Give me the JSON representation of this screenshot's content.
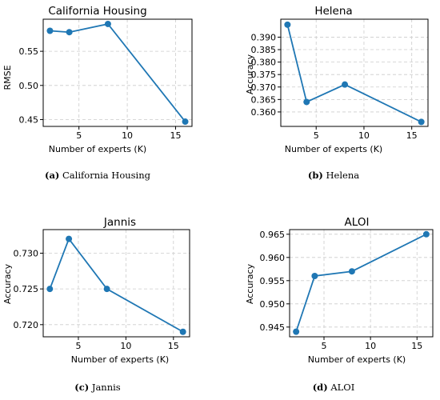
{
  "colors": {
    "line": "#1f77b4",
    "grid": "#cccccc",
    "axis": "#000000"
  },
  "chart_data": [
    {
      "type": "line",
      "title": "California Housing",
      "xlabel": "Number of experts (K)",
      "ylabel": "RMSE",
      "caption_tag": "(a)",
      "caption_text": "California Housing",
      "x": [
        2,
        4,
        8,
        16
      ],
      "y": [
        0.58,
        0.578,
        0.59,
        0.447
      ],
      "xlim": [
        1.3,
        16.7
      ],
      "ylim": [
        0.44,
        0.597
      ],
      "xticks": [
        {
          "v": 5,
          "label": "5"
        },
        {
          "v": 10,
          "label": "10"
        },
        {
          "v": 15,
          "label": "15"
        }
      ],
      "yticks": [
        {
          "v": 0.45,
          "label": "0.45"
        },
        {
          "v": 0.5,
          "label": "0.50"
        },
        {
          "v": 0.55,
          "label": "0.55"
        }
      ],
      "grid": true
    },
    {
      "type": "line",
      "title": "Helena",
      "xlabel": "Number of experts (K)",
      "ylabel": "Accuracy",
      "caption_tag": "(b)",
      "caption_text": "Helena",
      "x": [
        2,
        4,
        8,
        16
      ],
      "y": [
        0.395,
        0.364,
        0.371,
        0.356
      ],
      "xlim": [
        1.3,
        16.7
      ],
      "ylim": [
        0.3542,
        0.3972
      ],
      "xticks": [
        {
          "v": 5,
          "label": "5"
        },
        {
          "v": 10,
          "label": "10"
        },
        {
          "v": 15,
          "label": "15"
        }
      ],
      "yticks": [
        {
          "v": 0.36,
          "label": "0.360"
        },
        {
          "v": 0.365,
          "label": "0.365"
        },
        {
          "v": 0.37,
          "label": "0.370"
        },
        {
          "v": 0.375,
          "label": "0.375"
        },
        {
          "v": 0.38,
          "label": "0.380"
        },
        {
          "v": 0.385,
          "label": "0.385"
        },
        {
          "v": 0.39,
          "label": "0.390"
        }
      ],
      "grid": true
    },
    {
      "type": "line",
      "title": "Jannis",
      "xlabel": "Number of experts (K)",
      "ylabel": "Accuracy",
      "caption_tag": "(c)",
      "caption_text": "Jannis",
      "x": [
        2,
        4,
        8,
        16
      ],
      "y": [
        0.725,
        0.732,
        0.725,
        0.719
      ],
      "xlim": [
        1.3,
        16.7
      ],
      "ylim": [
        0.7183,
        0.7333
      ],
      "xticks": [
        {
          "v": 5,
          "label": "5"
        },
        {
          "v": 10,
          "label": "10"
        },
        {
          "v": 15,
          "label": "15"
        }
      ],
      "yticks": [
        {
          "v": 0.72,
          "label": "0.720"
        },
        {
          "v": 0.725,
          "label": "0.725"
        },
        {
          "v": 0.73,
          "label": "0.730"
        }
      ],
      "grid": true
    },
    {
      "type": "line",
      "title": "ALOI",
      "xlabel": "Number of experts (K)",
      "ylabel": "Accuracy",
      "caption_tag": "(d)",
      "caption_text": "ALOI",
      "x": [
        2,
        4,
        8,
        16
      ],
      "y": [
        0.944,
        0.956,
        0.957,
        0.965
      ],
      "xlim": [
        1.3,
        16.7
      ],
      "ylim": [
        0.9429,
        0.966
      ],
      "xticks": [
        {
          "v": 5,
          "label": "5"
        },
        {
          "v": 10,
          "label": "10"
        },
        {
          "v": 15,
          "label": "15"
        }
      ],
      "yticks": [
        {
          "v": 0.945,
          "label": "0.945"
        },
        {
          "v": 0.95,
          "label": "0.950"
        },
        {
          "v": 0.955,
          "label": "0.955"
        },
        {
          "v": 0.96,
          "label": "0.960"
        },
        {
          "v": 0.965,
          "label": "0.965"
        }
      ],
      "grid": true
    }
  ]
}
